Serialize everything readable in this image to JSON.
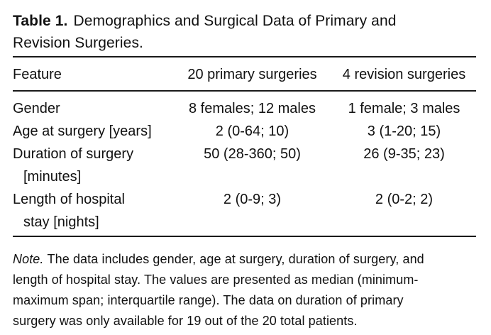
{
  "page": {
    "background_color": "#ffffff",
    "text_color": "#111111",
    "rule_color": "#191919"
  },
  "table": {
    "caption_label": "Table 1.",
    "caption_text": "Demographics and Surgical Data of Primary and Revision Surgeries.",
    "columns": [
      "Feature",
      "20 primary surgeries",
      "4 revision surgeries"
    ],
    "rows": [
      {
        "feature_line1": "Gender",
        "primary": "8 females; 12 males",
        "revision": "1 female; 3 males"
      },
      {
        "feature_line1": "Age at surgery [years]",
        "primary": "2 (0-64; 10)",
        "revision": "3 (1-20; 15)"
      },
      {
        "feature_line1": "Duration of surgery",
        "feature_line2": "[minutes]",
        "primary": "50 (28-360; 50)",
        "revision": "26 (9-35; 23)"
      },
      {
        "feature_line1": "Length of hospital",
        "feature_line2": "stay [nights]",
        "primary": "2 (0-9; 3)",
        "revision": "2 (0-2; 2)"
      }
    ],
    "note_label": "Note.",
    "note_text": "The data includes gender, age at surgery, duration of surgery, and length of hospital stay. The values are presented as median (minimum-maximum span; interquartile range). The data on duration of primary surgery was only available for 19 out of the 20 total patients."
  }
}
